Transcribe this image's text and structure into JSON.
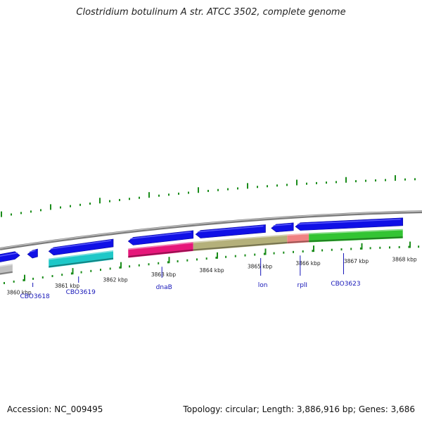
{
  "title": "Clostridium botulinum A str. ATCC 3502, complete genome",
  "footer": {
    "accession": "Accession: NC_009495",
    "summary": "Topology: circular; Length: 3,886,916 bp; Genes: 3,686"
  },
  "map": {
    "colors": {
      "backbone": "#8c8c8c",
      "strand_plus": "#1010e6",
      "tick_green": "#1a8c1a",
      "label_blue": "#1515b8"
    },
    "kbp_ticks": [
      {
        "pos": 3860.0,
        "label": "3860 kbp"
      },
      {
        "pos": 3861.0,
        "label": "3861 kbp"
      },
      {
        "pos": 3862.0,
        "label": "3862 kbp"
      },
      {
        "pos": 3863.0,
        "label": "3863 kbp"
      },
      {
        "pos": 3864.0,
        "label": "3864 kbp"
      },
      {
        "pos": 3865.0,
        "label": "3865 kbp"
      },
      {
        "pos": 3866.0,
        "label": "3866 kbp"
      },
      {
        "pos": 3867.0,
        "label": "3867 kbp"
      },
      {
        "pos": 3868.0,
        "label": "3868 kbp"
      }
    ],
    "cds": [
      {
        "name": "cds-0",
        "start": 3859.3,
        "end": 3859.9,
        "dir": "+"
      },
      {
        "name": "cds-1",
        "start": 3860.06,
        "end": 3860.27,
        "dir": "-"
      },
      {
        "name": "cds-2",
        "start": 3860.5,
        "end": 3861.84,
        "dir": "-"
      },
      {
        "name": "cds-3",
        "start": 3862.15,
        "end": 3863.5,
        "dir": "-"
      },
      {
        "name": "cds-4",
        "start": 3863.55,
        "end": 3865.0,
        "dir": "-"
      },
      {
        "name": "cds-5",
        "start": 3865.12,
        "end": 3865.58,
        "dir": "-"
      },
      {
        "name": "cds-6",
        "start": 3865.62,
        "end": 3867.85,
        "dir": "-"
      }
    ],
    "features": [
      {
        "name": "feature-gray",
        "start": 3859.3,
        "end": 3859.75,
        "color": "#c0c0c0"
      },
      {
        "name": "feature-cyan",
        "start": 3860.5,
        "end": 3861.84,
        "color": "#1ec8c8"
      },
      {
        "name": "feature-magenta",
        "start": 3862.15,
        "end": 3863.5,
        "color": "#e6177a"
      },
      {
        "name": "feature-khaki",
        "start": 3863.5,
        "end": 3865.45,
        "color": "#b4b07a"
      },
      {
        "name": "feature-salmon",
        "start": 3865.45,
        "end": 3865.9,
        "color": "#f08282"
      },
      {
        "name": "feature-green",
        "start": 3865.9,
        "end": 3867.85,
        "color": "#33c433"
      }
    ],
    "gene_labels": [
      {
        "name": "CBO3618",
        "pos": 3860.17,
        "text": "CBO3618"
      },
      {
        "name": "CBO3619",
        "pos": 3861.12,
        "text": "CBO3619"
      },
      {
        "name": "dnaB",
        "pos": 3862.85,
        "text": "dnaB"
      },
      {
        "name": "lon",
        "pos": 3864.9,
        "text": "lon"
      },
      {
        "name": "rplI",
        "pos": 3865.72,
        "text": "rplI"
      },
      {
        "name": "CBO3623",
        "pos": 3866.62,
        "text": "CBO3623"
      }
    ]
  }
}
